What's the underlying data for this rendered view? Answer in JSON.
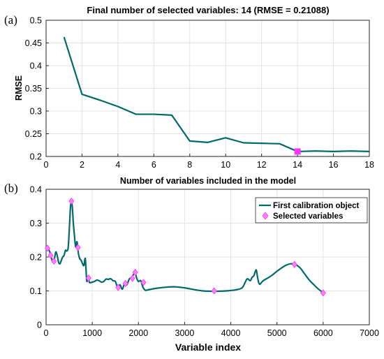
{
  "figure": {
    "panels": [
      "(a)",
      "(b)"
    ]
  },
  "colors": {
    "line": "#006a6a",
    "marker": "#ff33ff",
    "marker_light": "#ff80ff",
    "grid": "#e4e4e4"
  },
  "chart_data": [
    {
      "type": "line",
      "title": "Final number of selected variables: 14  (RMSE = 0.21088)",
      "xlabel": "Number of variables included in the model",
      "ylabel": "RMSE",
      "xlim": [
        0,
        18
      ],
      "ylim": [
        0.2,
        0.5
      ],
      "xticks": [
        0,
        2,
        4,
        6,
        8,
        10,
        12,
        14,
        16,
        18
      ],
      "yticks": [
        0.2,
        0.25,
        0.3,
        0.35,
        0.4,
        0.45,
        0.5
      ],
      "grid": true,
      "x": [
        1,
        2,
        3,
        4,
        5,
        6,
        7,
        8,
        9,
        10,
        11,
        12,
        13,
        14,
        15,
        16,
        17,
        18
      ],
      "values": [
        0.463,
        0.337,
        0.324,
        0.31,
        0.293,
        0.293,
        0.291,
        0.234,
        0.231,
        0.241,
        0.23,
        0.229,
        0.228,
        0.21088,
        0.212,
        0.211,
        0.212,
        0.211
      ],
      "highlight": {
        "x": 14,
        "y": 0.21088
      }
    },
    {
      "type": "line",
      "xlabel": "Variable index",
      "ylabel": "",
      "xlim": [
        0,
        7000
      ],
      "ylim": [
        0,
        0.4
      ],
      "xticks": [
        0,
        1000,
        2000,
        3000,
        4000,
        5000,
        6000,
        7000
      ],
      "yticks": [
        0,
        0.1,
        0.2,
        0.3,
        0.4
      ],
      "grid": true,
      "legend_position": "top-right",
      "series": [
        {
          "name": "First calibration object",
          "x": [
            0,
            40,
            80,
            120,
            150,
            180,
            210,
            240,
            270,
            300,
            330,
            360,
            390,
            420,
            450,
            480,
            510,
            530,
            550,
            570,
            590,
            610,
            640,
            670,
            700,
            730,
            760,
            790,
            820,
            850,
            880,
            910,
            940,
            980,
            1050,
            1100,
            1150,
            1200,
            1250,
            1300,
            1350,
            1400,
            1450,
            1500,
            1550,
            1600,
            1650,
            1700,
            1750,
            1800,
            1850,
            1900,
            1930,
            1960,
            2000,
            2050,
            2100,
            2150,
            2200,
            2400,
            2600,
            2800,
            3000,
            3200,
            3400,
            3650,
            3900,
            4100,
            4250,
            4350,
            4420,
            4460,
            4500,
            4550,
            4580,
            4620,
            4700,
            4800,
            4900,
            5000,
            5100,
            5200,
            5300,
            5400,
            5500,
            5600,
            5700,
            5800,
            5900,
            6000
          ],
          "values": [
            0.22,
            0.225,
            0.215,
            0.195,
            0.185,
            0.195,
            0.215,
            0.205,
            0.185,
            0.18,
            0.19,
            0.2,
            0.205,
            0.22,
            0.218,
            0.23,
            0.3,
            0.35,
            0.362,
            0.345,
            0.3,
            0.27,
            0.23,
            0.245,
            0.21,
            0.195,
            0.19,
            0.18,
            0.175,
            0.195,
            0.13,
            0.14,
            0.125,
            0.125,
            0.128,
            0.132,
            0.13,
            0.126,
            0.128,
            0.135,
            0.134,
            0.136,
            0.13,
            0.128,
            0.11,
            0.118,
            0.105,
            0.122,
            0.118,
            0.135,
            0.14,
            0.15,
            0.155,
            0.138,
            0.128,
            0.13,
            0.11,
            0.102,
            0.103,
            0.108,
            0.111,
            0.112,
            0.109,
            0.104,
            0.1,
            0.099,
            0.1,
            0.103,
            0.11,
            0.135,
            0.13,
            0.14,
            0.145,
            0.162,
            0.14,
            0.12,
            0.13,
            0.138,
            0.147,
            0.158,
            0.168,
            0.176,
            0.18,
            0.178,
            0.168,
            0.15,
            0.132,
            0.118,
            0.105,
            0.095
          ]
        },
        {
          "name": "Selected variables",
          "x": [
            30,
            100,
            170,
            550,
            690,
            920,
            1560,
            1720,
            1870,
            1930,
            2110,
            3640,
            5380,
            6000
          ],
          "values": [
            0.226,
            0.205,
            0.188,
            0.365,
            0.228,
            0.138,
            0.11,
            0.122,
            0.137,
            0.155,
            0.125,
            0.1,
            0.178,
            0.094
          ]
        }
      ]
    }
  ]
}
